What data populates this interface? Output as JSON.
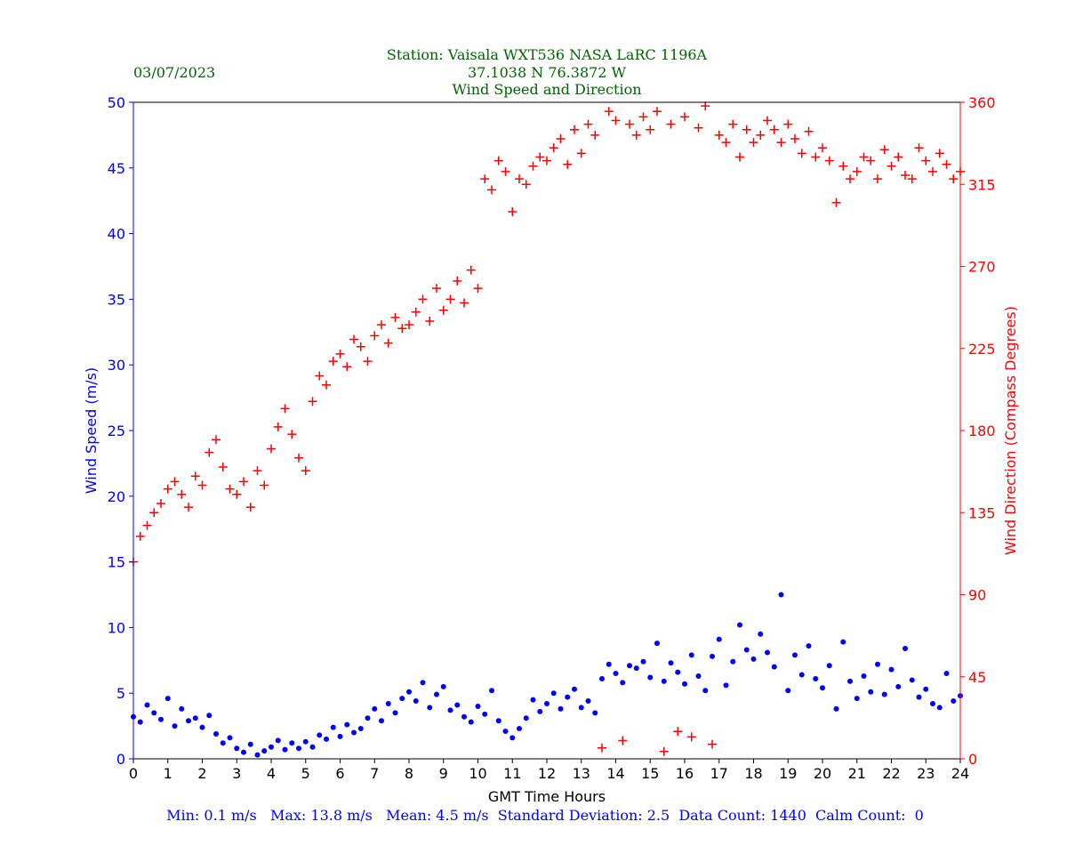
{
  "header": {
    "date": "03/07/2023",
    "title_line1": "Station:  Vaisala WXT536  NASA LaRC 1196A",
    "title_line2": "37.1038 N 76.3872 W",
    "title_line3": "Wind Speed and Direction"
  },
  "footer": {
    "stats": "Min: 0.1 m/s   Max: 13.8 m/s   Mean: 4.5 m/s  Standard Deviation: 2.5  Data Count: 1440  Calm Count:  0"
  },
  "colors": {
    "title": "#006400",
    "speed": "#0000ff",
    "direction": "#ff0000",
    "footer": "#0000ff"
  },
  "chart_data": {
    "type": "scatter",
    "title": "Wind Speed and Direction",
    "xlabel": "GMT Time Hours",
    "ylabel": "Wind Speed (m/s)",
    "y2label": "Wind Direction (Compass Degrees)",
    "xlim": [
      0,
      24
    ],
    "ylim": [
      0,
      50
    ],
    "y2lim": [
      0,
      360
    ],
    "xticks": [
      "0",
      "1",
      "2",
      "3",
      "4",
      "5",
      "6",
      "7",
      "8",
      "9",
      "10",
      "11",
      "12",
      "13",
      "14",
      "15",
      "16",
      "17",
      "18",
      "19",
      "20",
      "21",
      "22",
      "23",
      "24"
    ],
    "yticks": [
      "0",
      "5",
      "10",
      "15",
      "20",
      "25",
      "30",
      "35",
      "40",
      "45",
      "50"
    ],
    "y2ticks": [
      "0",
      "45",
      "90",
      "135",
      "180",
      "225",
      "270",
      "315",
      "360"
    ],
    "x_step_hours": 0.2,
    "series": [
      {
        "name": "Wind Speed",
        "axis": "left",
        "marker": "dot",
        "values": [
          3.2,
          2.8,
          4.1,
          3.5,
          3.0,
          4.6,
          2.5,
          3.8,
          2.9,
          3.1,
          2.4,
          3.3,
          1.9,
          1.2,
          1.6,
          0.8,
          0.5,
          1.1,
          0.3,
          0.6,
          0.9,
          1.4,
          0.7,
          1.2,
          0.8,
          1.3,
          0.9,
          1.8,
          1.5,
          2.4,
          1.7,
          2.6,
          2.0,
          2.3,
          3.1,
          3.8,
          2.9,
          4.2,
          3.5,
          4.6,
          5.1,
          4.4,
          5.8,
          3.9,
          4.9,
          5.5,
          3.7,
          4.1,
          3.2,
          2.8,
          4.0,
          3.4,
          5.2,
          2.9,
          2.1,
          1.6,
          2.3,
          3.1,
          4.5,
          3.6,
          4.2,
          5.0,
          3.8,
          4.7,
          5.3,
          3.9,
          4.4,
          3.5,
          6.1,
          7.2,
          6.5,
          5.8,
          7.1,
          6.9,
          7.4,
          6.2,
          8.8,
          5.9,
          7.3,
          6.6,
          5.7,
          7.9,
          6.3,
          5.2,
          7.8,
          9.1,
          5.6,
          7.4,
          10.2,
          8.3,
          7.6,
          9.5,
          8.1,
          7.0,
          12.5,
          5.2,
          7.9,
          6.4,
          8.6,
          6.1,
          5.4,
          7.1,
          3.8,
          8.9,
          5.9,
          4.6,
          6.3,
          5.1,
          7.2,
          4.9,
          6.8,
          5.5,
          8.4,
          6.0,
          4.7,
          5.3,
          4.2,
          3.9,
          6.5,
          4.4,
          4.8
        ]
      },
      {
        "name": "Wind Direction",
        "axis": "right",
        "marker": "plus",
        "values": [
          108,
          122,
          128,
          135,
          140,
          148,
          152,
          145,
          138,
          155,
          150,
          168,
          175,
          160,
          148,
          145,
          152,
          138,
          158,
          150,
          170,
          182,
          192,
          178,
          165,
          158,
          196,
          210,
          205,
          218,
          222,
          215,
          230,
          226,
          218,
          232,
          238,
          228,
          242,
          236,
          238,
          245,
          252,
          240,
          258,
          246,
          252,
          262,
          250,
          268,
          258,
          318,
          312,
          328,
          322,
          300,
          318,
          315,
          325,
          330,
          328,
          335,
          340,
          326,
          345,
          332,
          348,
          342,
          6,
          355,
          350,
          10,
          348,
          342,
          352,
          345,
          355,
          4,
          348,
          15,
          352,
          12,
          346,
          358,
          8,
          342,
          338,
          348,
          330,
          345,
          338,
          342,
          350,
          345,
          338,
          348,
          340,
          332,
          344,
          330,
          335,
          328,
          305,
          325,
          318,
          322,
          330,
          328,
          318,
          334,
          325,
          330,
          320,
          318,
          335,
          328,
          322,
          332,
          326,
          318,
          322
        ]
      }
    ]
  }
}
